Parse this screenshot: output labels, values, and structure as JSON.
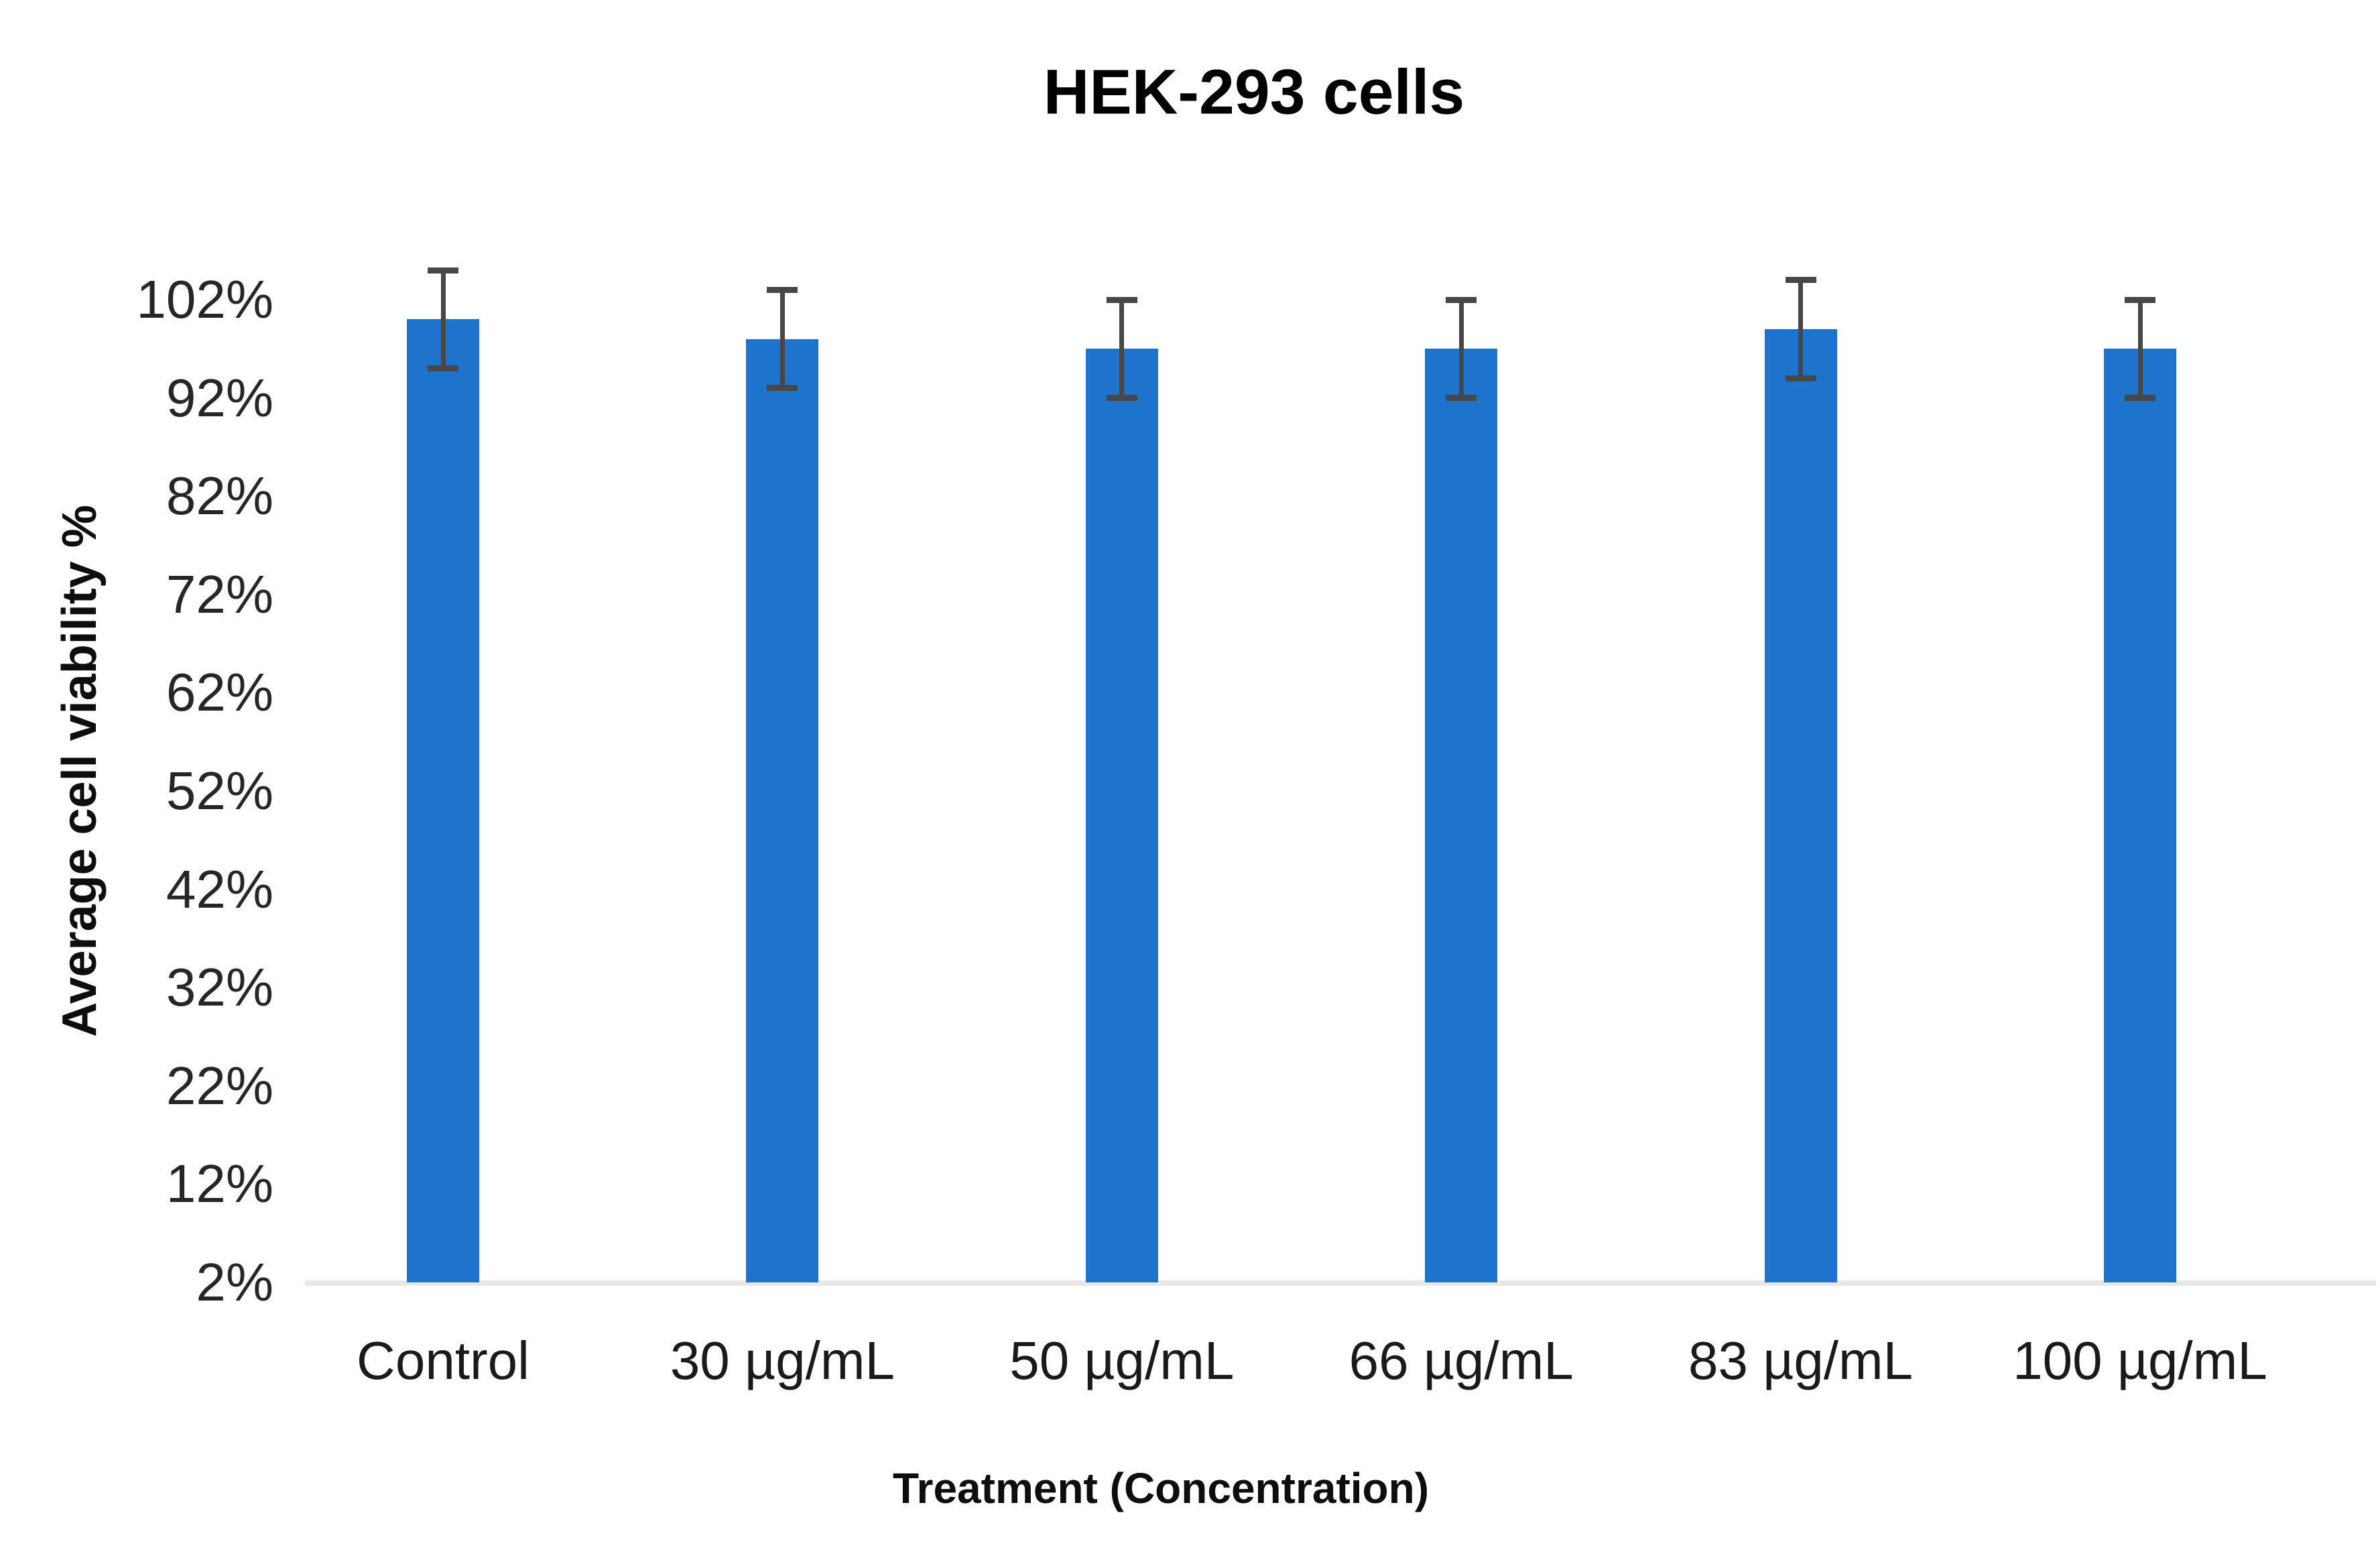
{
  "chart_data": {
    "type": "bar",
    "title": "HEK-293 cells",
    "xlabel": "Treatment (Concentration)",
    "ylabel": "Average cell viability %",
    "categories": [
      "Control",
      "30 µg/mL",
      "50 µg/mL",
      "66 µg/mL",
      "83 µg/mL",
      "100 µg/mL"
    ],
    "values": [
      100,
      98,
      97,
      97,
      99,
      97
    ],
    "error_plus": [
      5,
      5,
      5,
      5,
      5,
      5
    ],
    "error_minus": [
      5,
      5,
      5,
      5,
      5,
      5
    ],
    "y_tick_labels": [
      "102%",
      "92%",
      "82%",
      "72%",
      "62%",
      "52%",
      "42%",
      "32%",
      "22%",
      "12%",
      "2%"
    ],
    "y_axis": {
      "min": 2,
      "max": 102,
      "step": 10,
      "unit": "%"
    },
    "legend_position": "none",
    "grid": "off",
    "colors": {
      "bar": "#1E73CD",
      "error_bar": "#474747",
      "axis_line": "#E8E8E8",
      "title_text": "#000000",
      "tick_text": "#262626",
      "background": "#FFFFFF"
    }
  }
}
